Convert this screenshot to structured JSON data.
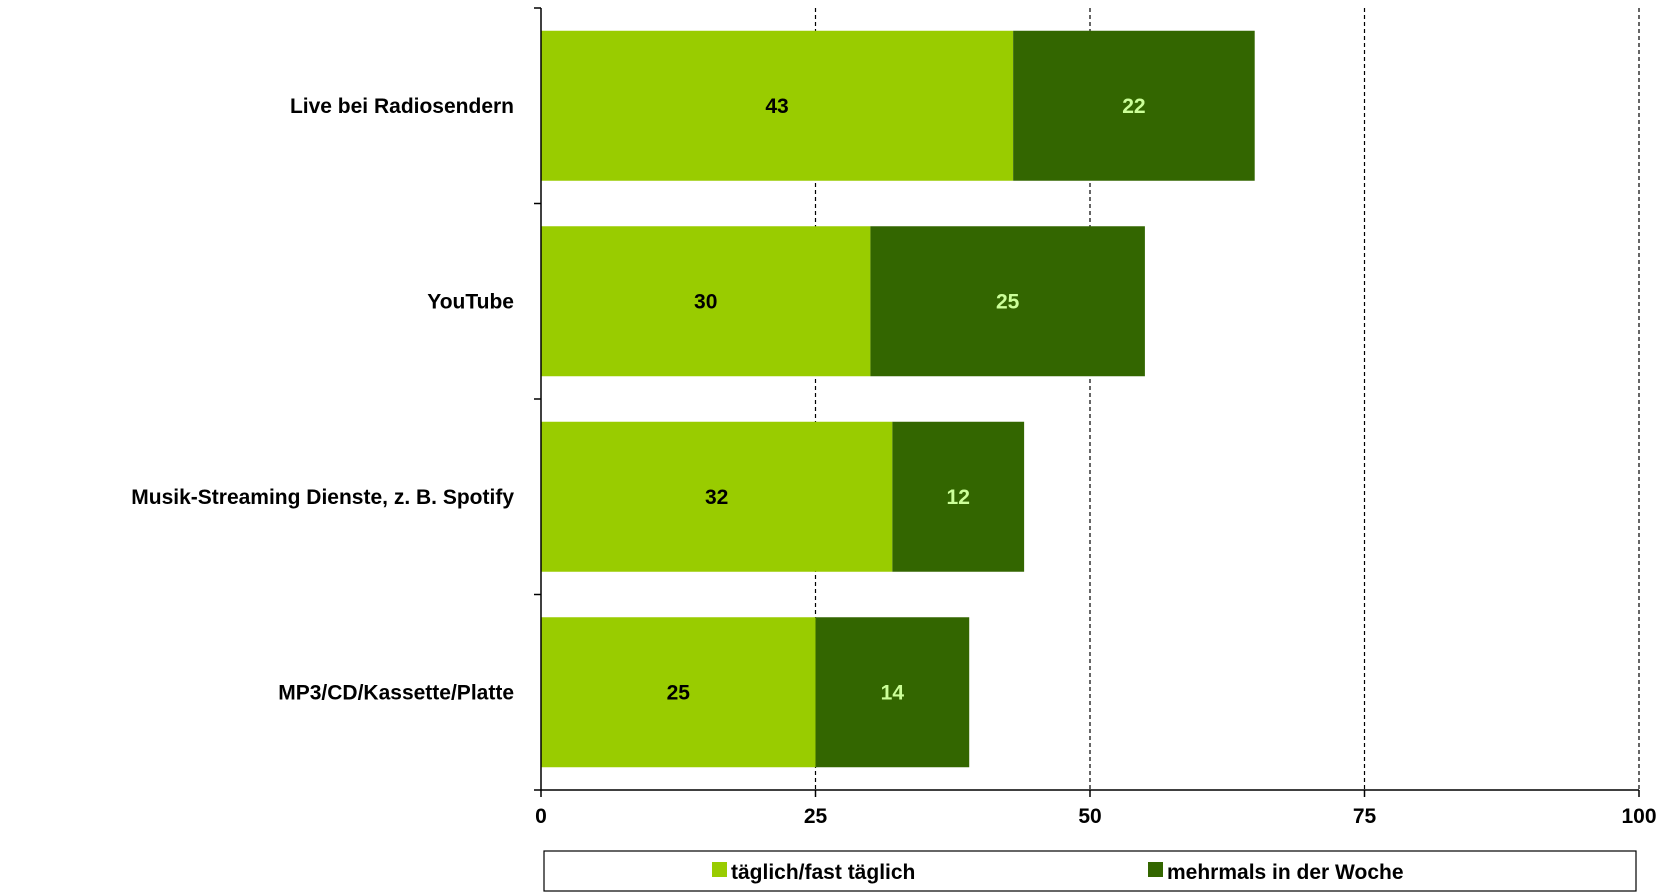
{
  "chart_data": {
    "type": "bar",
    "orientation": "horizontal",
    "stacked": true,
    "categories": [
      "Live bei Radiosendern",
      "YouTube",
      "Musik-Streaming Dienste,  z. B. Spotify",
      "MP3/CD/Kassette/Platte"
    ],
    "series": [
      {
        "name": "täglich/fast täglich",
        "values": [
          43,
          30,
          32,
          25
        ],
        "color": "#99cc00",
        "label_color": "#000000"
      },
      {
        "name": "mehrmals in der Woche",
        "values": [
          22,
          25,
          12,
          14
        ],
        "color": "#336600",
        "label_color": "#ccff99"
      }
    ],
    "xlim": [
      0,
      100
    ],
    "xticks": [
      "0",
      "25",
      "50",
      "75",
      "100"
    ],
    "grid": "dashed vertical",
    "legend_position": "bottom"
  }
}
